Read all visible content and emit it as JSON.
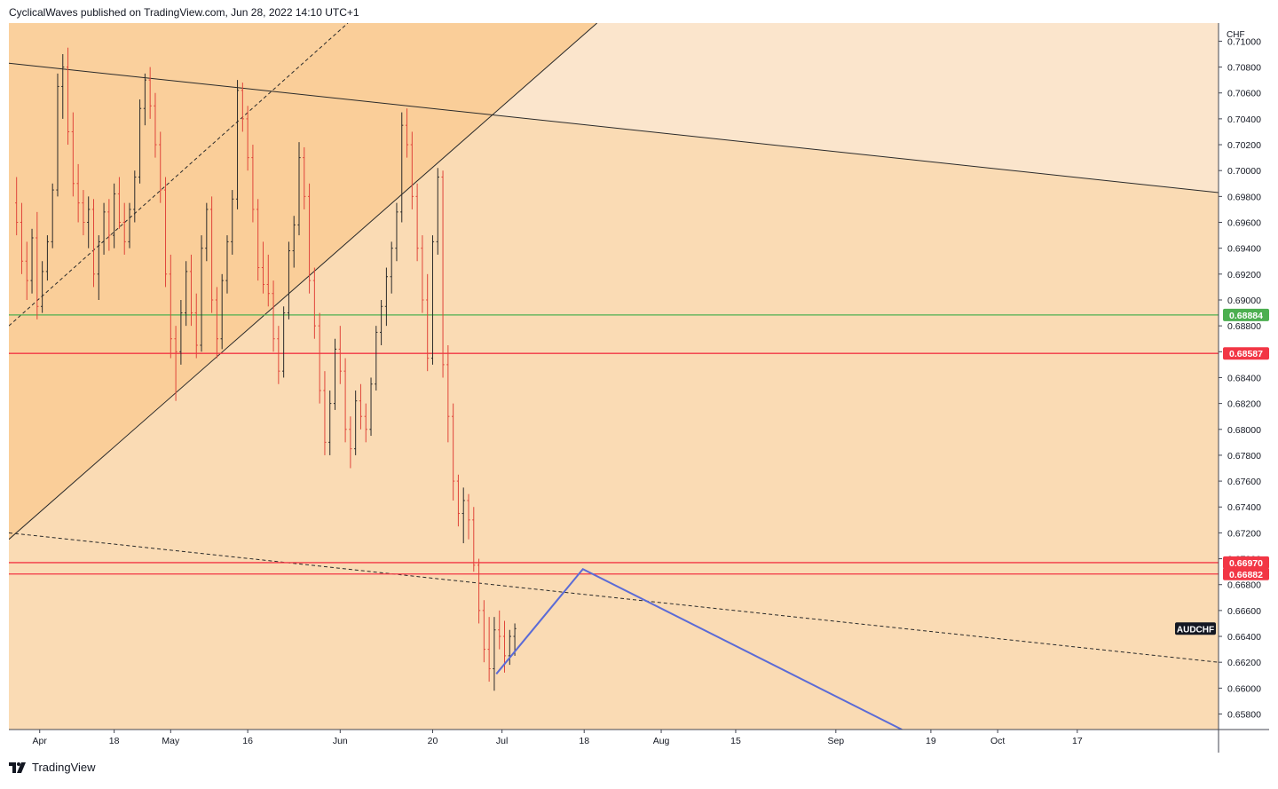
{
  "header": {
    "publisher": "CyclicalWaves published on TradingView.com, Jun 28, 2022 14:10 UTC+1"
  },
  "footer": {
    "brand": "TradingView",
    "logo_icon": "tradingview-logo-icon"
  },
  "chart_data": {
    "type": "candlestick",
    "symbol": "AUDCHF",
    "currency": "CHF",
    "ylim": [
      0.6568,
      0.7114
    ],
    "y_ticks": [
      "0.71000",
      "0.70800",
      "0.70600",
      "0.70400",
      "0.70200",
      "0.70000",
      "0.69800",
      "0.69600",
      "0.69400",
      "0.69200",
      "0.69000",
      "0.68800",
      "0.68600",
      "0.68400",
      "0.68200",
      "0.68000",
      "0.67800",
      "0.67600",
      "0.67400",
      "0.67200",
      "0.67000",
      "0.66800",
      "0.66600",
      "0.66400",
      "0.66200",
      "0.66000",
      "0.65800"
    ],
    "x_ticks": [
      {
        "label": "Apr",
        "x": 12
      },
      {
        "label": "18",
        "x": 41
      },
      {
        "label": "May",
        "x": 63
      },
      {
        "label": "16",
        "x": 93
      },
      {
        "label": "Jun",
        "x": 129
      },
      {
        "label": "20",
        "x": 165
      },
      {
        "label": "Jul",
        "x": 192
      },
      {
        "label": "18",
        "x": 224
      },
      {
        "label": "Aug",
        "x": 254
      },
      {
        "label": "15",
        "x": 283
      },
      {
        "label": "Sep",
        "x": 322
      },
      {
        "label": "19",
        "x": 359
      },
      {
        "label": "Oct",
        "x": 385
      },
      {
        "label": "17",
        "x": 416
      }
    ],
    "x_domain": [
      0,
      471
    ],
    "price_levels": [
      {
        "value": 0.68884,
        "label": "0.68884",
        "color": "#4caf50"
      },
      {
        "value": 0.68587,
        "label": "0.68587",
        "color": "#f23645"
      },
      {
        "value": 0.6697,
        "label": "0.66970",
        "color": "#f23645"
      },
      {
        "value": 0.66882,
        "label": "0.66882",
        "color": "#f23645"
      }
    ],
    "last_price_label": "AUDCHF",
    "last_price": 0.6646,
    "projection": {
      "color": "#5b6bd6",
      "points": [
        [
          189.8,
          0.6611
        ],
        [
          223.5,
          0.6692
        ],
        [
          347.7,
          0.6568
        ]
      ]
    },
    "trendlines": [
      {
        "style": "solid",
        "points": [
          [
            0,
            0.7083
          ],
          [
            471,
            0.6983
          ]
        ]
      },
      {
        "style": "solid",
        "points": [
          [
            0,
            0.6715
          ],
          [
            229,
            0.7114
          ]
        ]
      },
      {
        "style": "dashed",
        "points": [
          [
            0,
            0.688
          ],
          [
            132,
            0.7114
          ]
        ]
      },
      {
        "style": "dashed",
        "points": [
          [
            0,
            0.672
          ],
          [
            471,
            0.662
          ]
        ]
      }
    ],
    "series": [
      {
        "name": "AUDCHF",
        "candles": [
          [
            3,
            0.6975,
            0.6995,
            0.695,
            0.696
          ],
          [
            5,
            0.696,
            0.6975,
            0.692,
            0.693
          ],
          [
            7,
            0.693,
            0.6945,
            0.69,
            0.6915
          ],
          [
            9,
            0.6915,
            0.6955,
            0.6905,
            0.6948
          ],
          [
            11,
            0.6948,
            0.6968,
            0.6885,
            0.6895
          ],
          [
            13,
            0.6895,
            0.693,
            0.689,
            0.6922
          ],
          [
            15,
            0.6922,
            0.695,
            0.6915,
            0.6945
          ],
          [
            17,
            0.6945,
            0.699,
            0.694,
            0.6985
          ],
          [
            19,
            0.6985,
            0.7075,
            0.698,
            0.7065
          ],
          [
            21,
            0.7065,
            0.709,
            0.704,
            0.708
          ],
          [
            23,
            0.708,
            0.7095,
            0.702,
            0.703
          ],
          [
            25,
            0.703,
            0.7045,
            0.698,
            0.699
          ],
          [
            27,
            0.699,
            0.7005,
            0.696,
            0.6975
          ],
          [
            29,
            0.6975,
            0.6985,
            0.695,
            0.696
          ],
          [
            31,
            0.696,
            0.698,
            0.694,
            0.697
          ],
          [
            33,
            0.697,
            0.6978,
            0.691,
            0.692
          ],
          [
            35,
            0.692,
            0.695,
            0.69,
            0.6945
          ],
          [
            37,
            0.6945,
            0.6975,
            0.6935,
            0.6968
          ],
          [
            39,
            0.6968,
            0.6978,
            0.6938,
            0.695
          ],
          [
            41,
            0.695,
            0.699,
            0.694,
            0.6982
          ],
          [
            43,
            0.6982,
            0.6995,
            0.6955,
            0.696
          ],
          [
            45,
            0.696,
            0.6975,
            0.6935,
            0.6945
          ],
          [
            47,
            0.6945,
            0.6975,
            0.694,
            0.697
          ],
          [
            49,
            0.697,
            0.7,
            0.696,
            0.6995
          ],
          [
            51,
            0.6995,
            0.7055,
            0.699,
            0.7048
          ],
          [
            53,
            0.7048,
            0.7075,
            0.7035,
            0.707
          ],
          [
            55,
            0.707,
            0.708,
            0.704,
            0.705
          ],
          [
            57,
            0.705,
            0.706,
            0.701,
            0.702
          ],
          [
            59,
            0.702,
            0.703,
            0.6975,
            0.6985
          ],
          [
            61,
            0.6985,
            0.6995,
            0.691,
            0.692
          ],
          [
            63,
            0.692,
            0.6935,
            0.6855,
            0.687
          ],
          [
            65,
            0.687,
            0.688,
            0.6822,
            0.686
          ],
          [
            67,
            0.686,
            0.69,
            0.685,
            0.689
          ],
          [
            69,
            0.689,
            0.693,
            0.688,
            0.6922
          ],
          [
            71,
            0.6922,
            0.6935,
            0.688,
            0.689
          ],
          [
            73,
            0.689,
            0.6905,
            0.6855,
            0.6865
          ],
          [
            75,
            0.6865,
            0.695,
            0.686,
            0.694
          ],
          [
            77,
            0.694,
            0.6975,
            0.693,
            0.697
          ],
          [
            79,
            0.697,
            0.698,
            0.689,
            0.69
          ],
          [
            81,
            0.69,
            0.691,
            0.6855,
            0.687
          ],
          [
            83,
            0.687,
            0.692,
            0.6862,
            0.6915
          ],
          [
            85,
            0.6915,
            0.695,
            0.6905,
            0.6945
          ],
          [
            87,
            0.6945,
            0.6985,
            0.6935,
            0.6978
          ],
          [
            89,
            0.6978,
            0.707,
            0.697,
            0.7062
          ],
          [
            91,
            0.7062,
            0.7068,
            0.703,
            0.704
          ],
          [
            93,
            0.704,
            0.705,
            0.7,
            0.701
          ],
          [
            95,
            0.701,
            0.702,
            0.696,
            0.697
          ],
          [
            97,
            0.697,
            0.6978,
            0.6915,
            0.6925
          ],
          [
            99,
            0.6925,
            0.6945,
            0.6905,
            0.6912
          ],
          [
            101,
            0.6912,
            0.6935,
            0.6895,
            0.6905
          ],
          [
            103,
            0.6905,
            0.6915,
            0.686,
            0.687
          ],
          [
            105,
            0.687,
            0.688,
            0.6835,
            0.6845
          ],
          [
            107,
            0.6845,
            0.6895,
            0.684,
            0.689
          ],
          [
            109,
            0.689,
            0.6945,
            0.6885,
            0.6938
          ],
          [
            111,
            0.6938,
            0.6965,
            0.6925,
            0.6958
          ],
          [
            113,
            0.6958,
            0.7022,
            0.695,
            0.701
          ],
          [
            115,
            0.701,
            0.7018,
            0.697,
            0.698
          ],
          [
            117,
            0.698,
            0.699,
            0.6905,
            0.6915
          ],
          [
            119,
            0.6915,
            0.6925,
            0.687,
            0.688
          ],
          [
            121,
            0.688,
            0.689,
            0.682,
            0.683
          ],
          [
            123,
            0.683,
            0.6845,
            0.678,
            0.679
          ],
          [
            125,
            0.679,
            0.683,
            0.678,
            0.682
          ],
          [
            127,
            0.682,
            0.687,
            0.6815,
            0.6862
          ],
          [
            129,
            0.6862,
            0.688,
            0.6835,
            0.6845
          ],
          [
            131,
            0.6845,
            0.6855,
            0.679,
            0.68
          ],
          [
            133,
            0.68,
            0.681,
            0.677,
            0.6785
          ],
          [
            135,
            0.6785,
            0.683,
            0.678,
            0.6822
          ],
          [
            137,
            0.6822,
            0.6835,
            0.68,
            0.681
          ],
          [
            139,
            0.681,
            0.682,
            0.679,
            0.68
          ],
          [
            141,
            0.68,
            0.684,
            0.6795,
            0.6835
          ],
          [
            143,
            0.6835,
            0.688,
            0.683,
            0.6875
          ],
          [
            145,
            0.6875,
            0.69,
            0.6865,
            0.6895
          ],
          [
            147,
            0.6895,
            0.6925,
            0.688,
            0.6918
          ],
          [
            149,
            0.6918,
            0.6945,
            0.6905,
            0.694
          ],
          [
            151,
            0.694,
            0.6975,
            0.693,
            0.6968
          ],
          [
            153,
            0.6968,
            0.7045,
            0.696,
            0.7035
          ],
          [
            155,
            0.7035,
            0.7048,
            0.701,
            0.702
          ],
          [
            157,
            0.702,
            0.703,
            0.697,
            0.698
          ],
          [
            159,
            0.698,
            0.699,
            0.693,
            0.694
          ],
          [
            161,
            0.694,
            0.695,
            0.689,
            0.69
          ],
          [
            163,
            0.69,
            0.692,
            0.6845,
            0.6855
          ],
          [
            165,
            0.6855,
            0.695,
            0.685,
            0.6945
          ],
          [
            167,
            0.6945,
            0.7002,
            0.6935,
            0.6995
          ],
          [
            169,
            0.6995,
            0.7,
            0.684,
            0.685
          ],
          [
            171,
            0.685,
            0.6865,
            0.679,
            0.681
          ],
          [
            173,
            0.681,
            0.682,
            0.6745,
            0.676
          ],
          [
            175,
            0.676,
            0.6765,
            0.6725,
            0.6735
          ],
          [
            177,
            0.6735,
            0.6755,
            0.6712,
            0.6745
          ],
          [
            179,
            0.6745,
            0.675,
            0.6715,
            0.673
          ],
          [
            181,
            0.673,
            0.674,
            0.669,
            0.6695
          ],
          [
            183,
            0.6695,
            0.67,
            0.665,
            0.666
          ],
          [
            185,
            0.666,
            0.6668,
            0.662,
            0.663
          ],
          [
            187,
            0.663,
            0.6655,
            0.6605,
            0.6615
          ],
          [
            189,
            0.6615,
            0.6655,
            0.6598,
            0.6645
          ],
          [
            191,
            0.6645,
            0.666,
            0.663,
            0.664
          ],
          [
            193,
            0.664,
            0.6652,
            0.6612,
            0.6625
          ],
          [
            195,
            0.6625,
            0.6645,
            0.6618,
            0.664
          ],
          [
            197,
            0.664,
            0.665,
            0.6625,
            0.6646
          ]
        ]
      }
    ]
  }
}
